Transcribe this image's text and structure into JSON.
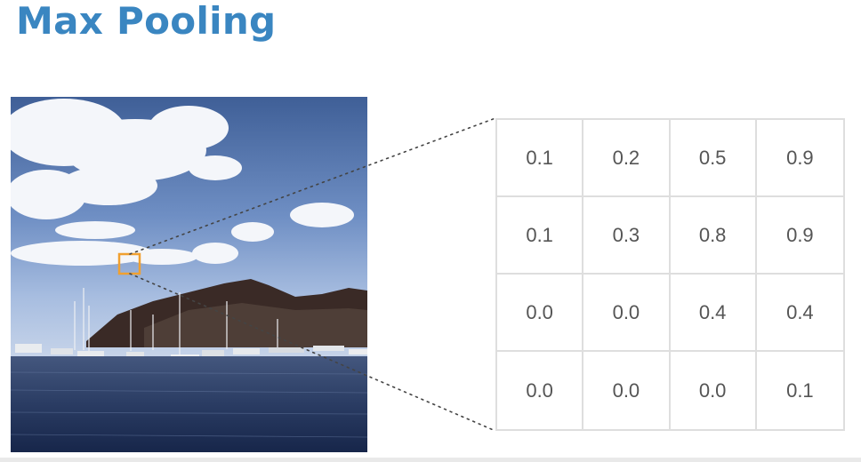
{
  "title": "Max Pooling",
  "photo": {
    "description_icon": "harbor-photo",
    "highlight_color": "#f0a030"
  },
  "grid": {
    "rows": [
      [
        "0.1",
        "0.2",
        "0.5",
        "0.9"
      ],
      [
        "0.1",
        "0.3",
        "0.8",
        "0.9"
      ],
      [
        "0.0",
        "0.0",
        "0.4",
        "0.4"
      ],
      [
        "0.0",
        "0.0",
        "0.0",
        "0.1"
      ]
    ]
  },
  "colors": {
    "title": "#3a86c1",
    "grid_border": "#dedede",
    "cell_text": "#555555"
  }
}
